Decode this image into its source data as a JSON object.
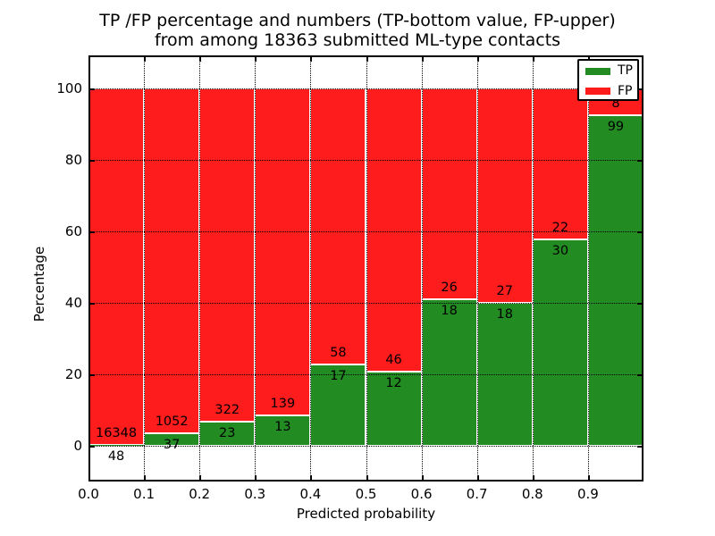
{
  "title": {
    "line1": "TP /FP percentage and numbers (TP-bottom value, FP-upper)",
    "line2": "from among 18363 submitted ML-type contacts"
  },
  "axes": {
    "x_label": "Predicted probability",
    "y_label": "Percentage",
    "x_tick_labels": [
      "0.0",
      "0.1",
      "0.2",
      "0.3",
      "0.4",
      "0.5",
      "0.6",
      "0.7",
      "0.8",
      "0.9"
    ],
    "y_tick_labels": [
      "0",
      "20",
      "40",
      "60",
      "80",
      "100"
    ]
  },
  "legend": {
    "items": [
      {
        "label": "TP",
        "color": "#228b22"
      },
      {
        "label": "FP",
        "color": "#ff1c1c"
      }
    ]
  },
  "colors": {
    "tp": "#228b22",
    "fp": "#ff1c1c",
    "bar_edge": "#ffffff",
    "grid": "#000000",
    "text": "#000000"
  },
  "chart_data": {
    "type": "bar",
    "subtype": "stacked-normalized-percent",
    "title": "TP /FP percentage and numbers (TP-bottom value, FP-upper) from among 18363 submitted ML-type contacts",
    "xlabel": "Predicted probability",
    "ylabel": "Percentage",
    "bin_edges": [
      0.0,
      0.1,
      0.2,
      0.3,
      0.4,
      0.5,
      0.6,
      0.7,
      0.8,
      0.9,
      1.0
    ],
    "categories": [
      "0.0-0.1",
      "0.1-0.2",
      "0.2-0.3",
      "0.3-0.4",
      "0.4-0.5",
      "0.5-0.6",
      "0.6-0.7",
      "0.7-0.8",
      "0.8-0.9",
      "0.9-1.0"
    ],
    "series": [
      {
        "name": "TP",
        "color": "#228b22",
        "counts": [
          48,
          37,
          23,
          13,
          17,
          12,
          18,
          18,
          30,
          99
        ]
      },
      {
        "name": "FP",
        "color": "#ff1c1c",
        "counts": [
          16348,
          1052,
          322,
          139,
          58,
          46,
          26,
          27,
          22,
          8
        ]
      }
    ],
    "tp_percent_of_bin": [
      0.29,
      3.4,
      6.67,
      8.55,
      22.67,
      20.69,
      40.91,
      40.0,
      57.69,
      92.52
    ],
    "total_contacts": 18363,
    "xlim": [
      0.0,
      1.0
    ],
    "ylim": [
      -10,
      110
    ],
    "y_ticks": [
      0,
      20,
      40,
      60,
      80,
      100
    ],
    "grid": "dotted",
    "legend_position": "upper right"
  }
}
